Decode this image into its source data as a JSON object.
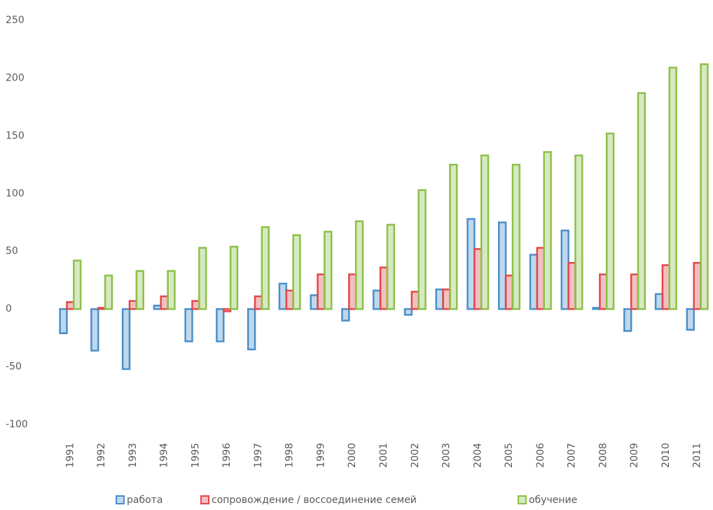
{
  "chart_data": {
    "type": "bar",
    "categories": [
      "1991",
      "1992",
      "1993",
      "1994",
      "1995",
      "1996",
      "1997",
      "1998",
      "1999",
      "2000",
      "2001",
      "2002",
      "2003",
      "2004",
      "2005",
      "2006",
      "2007",
      "2008",
      "2009",
      "2010",
      "2011"
    ],
    "series": [
      {
        "name": "работа",
        "color": "#4a8fc9",
        "values": [
          -21,
          -36,
          -52,
          3,
          -28,
          -28,
          -35,
          22,
          12,
          -10,
          16,
          -5,
          17,
          78,
          75,
          47,
          68,
          1,
          -19,
          13,
          -18
        ]
      },
      {
        "name": "сопровождение / воссоединение семей",
        "color": "#e0484a",
        "values": [
          6,
          1,
          7,
          11,
          7,
          -2,
          11,
          16,
          30,
          30,
          36,
          15,
          17,
          52,
          29,
          53,
          40,
          30,
          30,
          38,
          40
        ]
      },
      {
        "name": "обучение",
        "color": "#8cc04a",
        "values": [
          42,
          29,
          33,
          33,
          53,
          54,
          71,
          64,
          67,
          76,
          73,
          103,
          125,
          133,
          125,
          136,
          133,
          152,
          187,
          209,
          212
        ]
      }
    ],
    "ylim": [
      -100,
      250
    ],
    "yticks": [
      -100,
      -50,
      0,
      50,
      100,
      150,
      200,
      250
    ]
  }
}
